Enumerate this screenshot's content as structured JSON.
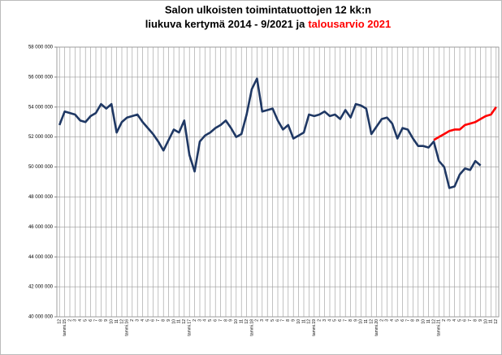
{
  "chart_data": {
    "type": "line",
    "title": "Salon ulkoisten toimintatuottojen 12 kk:n",
    "subtitle": "liukuva kertymä 2014 - 9/2021 ja",
    "subtitle_highlight": "talousarvio 2021",
    "categories": [
      "12",
      "tammi.15",
      "2",
      "3",
      "4",
      "5",
      "6",
      "7",
      "8",
      "9",
      "10",
      "11",
      "12",
      "tammi.16",
      "2",
      "3",
      "4",
      "5",
      "6",
      "7",
      "8",
      "9",
      "10",
      "11",
      "12",
      "tammi.17",
      "2",
      "3",
      "4",
      "5",
      "6",
      "7",
      "8",
      "9",
      "10",
      "11",
      "12",
      "tammi.18",
      "2",
      "3",
      "4",
      "5",
      "6",
      "7",
      "8",
      "9",
      "10",
      "11",
      "12",
      "tammi.19",
      "2",
      "3",
      "4",
      "5",
      "6",
      "7",
      "8",
      "9",
      "10",
      "11",
      "12",
      "tammi.20",
      "2",
      "3",
      "4",
      "5",
      "6",
      "7",
      "8",
      "9",
      "10",
      "11",
      "12",
      "tammi.21",
      "2",
      "3",
      "4",
      "5",
      "6",
      "7",
      "8",
      "9",
      "10",
      "11",
      "12"
    ],
    "series": [
      {
        "color": "#1f3864",
        "values": [
          52800000,
          53700000,
          53600000,
          53500000,
          53100000,
          53000000,
          53400000,
          53600000,
          54200000,
          53900000,
          54200000,
          52300000,
          53000000,
          53300000,
          53400000,
          53500000,
          53000000,
          52600000,
          52200000,
          51700000,
          51100000,
          51800000,
          52500000,
          52300000,
          53100000,
          50800000,
          49700000,
          51700000,
          52100000,
          52300000,
          52600000,
          52800000,
          53100000,
          52600000,
          52000000,
          52200000,
          53500000,
          55200000,
          55900000,
          53700000,
          53800000,
          53900000,
          53100000,
          52500000,
          52800000,
          51900000,
          52100000,
          52300000,
          53500000,
          53400000,
          53500000,
          53700000,
          53400000,
          53500000,
          53200000,
          53800000,
          53300000,
          54200000,
          54100000,
          53900000,
          52200000,
          52700000,
          53200000,
          53300000,
          52900000,
          51900000,
          52600000,
          52500000,
          51900000,
          51400000,
          51400000,
          51300000,
          51700000,
          50400000,
          50000000,
          48600000,
          48700000,
          49500000,
          49900000,
          49800000,
          50400000,
          50100000,
          null,
          null,
          null
        ]
      },
      {
        "color": "#ff0000",
        "values": [
          null,
          null,
          null,
          null,
          null,
          null,
          null,
          null,
          null,
          null,
          null,
          null,
          null,
          null,
          null,
          null,
          null,
          null,
          null,
          null,
          null,
          null,
          null,
          null,
          null,
          null,
          null,
          null,
          null,
          null,
          null,
          null,
          null,
          null,
          null,
          null,
          null,
          null,
          null,
          null,
          null,
          null,
          null,
          null,
          null,
          null,
          null,
          null,
          null,
          null,
          null,
          null,
          null,
          null,
          null,
          null,
          null,
          null,
          null,
          null,
          null,
          null,
          null,
          null,
          null,
          null,
          null,
          null,
          null,
          null,
          null,
          null,
          51800000,
          52000000,
          52200000,
          52400000,
          52500000,
          52500000,
          52800000,
          52900000,
          53000000,
          53200000,
          53400000,
          53500000,
          54000000
        ]
      }
    ],
    "ylim": [
      40000000,
      58000000
    ],
    "yticks": [
      {
        "value": 40000000,
        "label": "40 000 000"
      },
      {
        "value": 42000000,
        "label": "42 000 000"
      },
      {
        "value": 44000000,
        "label": "44 000 000"
      },
      {
        "value": 46000000,
        "label": "46 000 000"
      },
      {
        "value": 48000000,
        "label": "48 000 000"
      },
      {
        "value": 50000000,
        "label": "50 000 000"
      },
      {
        "value": 52000000,
        "label": "52 000 000"
      },
      {
        "value": 54000000,
        "label": "54 000 000"
      },
      {
        "value": 56000000,
        "label": "56 000 000"
      },
      {
        "value": 58000000,
        "label": "58 000 000"
      }
    ],
    "grid": true
  }
}
